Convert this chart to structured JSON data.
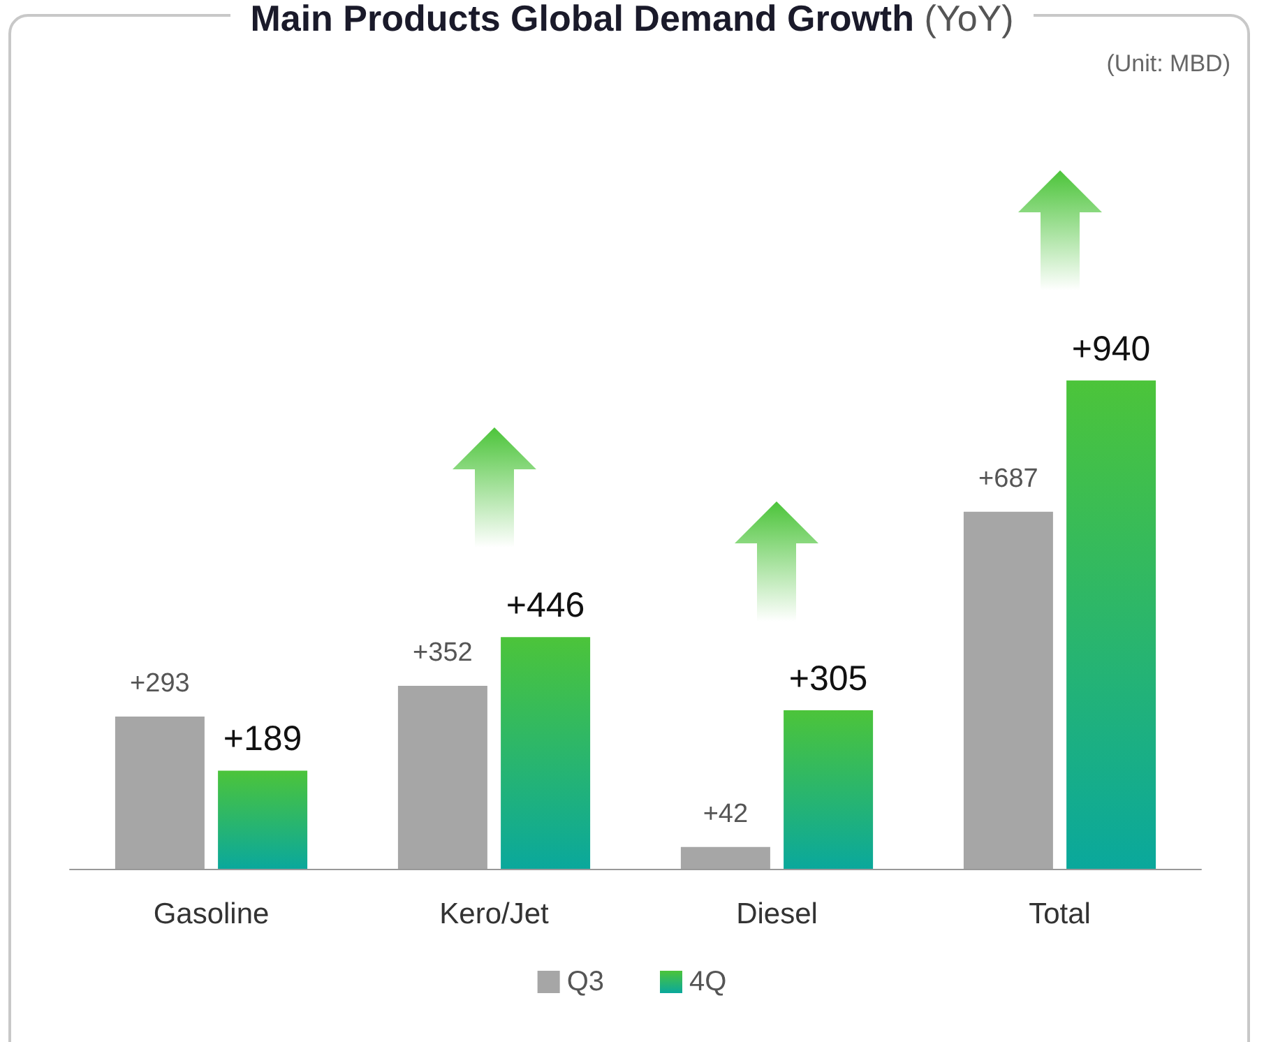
{
  "chart_data": {
    "type": "bar",
    "title": "Main Products Global Demand Growth",
    "subtitle": "(YoY)",
    "annotations": [
      "(Unit: MBD)"
    ],
    "categories": [
      "Gasoline",
      "Kero/Jet",
      "Diesel",
      "Total"
    ],
    "series": [
      {
        "name": "Q3",
        "color": "#a6a6a6",
        "values": [
          293,
          352,
          42,
          687
        ],
        "value_labels": [
          "+293",
          "+352",
          "+42",
          "+687"
        ]
      },
      {
        "name": "4Q",
        "color": "#4cc43a",
        "values": [
          189,
          446,
          305,
          940
        ],
        "value_labels": [
          "+189",
          "+446",
          "+305",
          "+940"
        ]
      }
    ],
    "legend": "bottom"
  }
}
